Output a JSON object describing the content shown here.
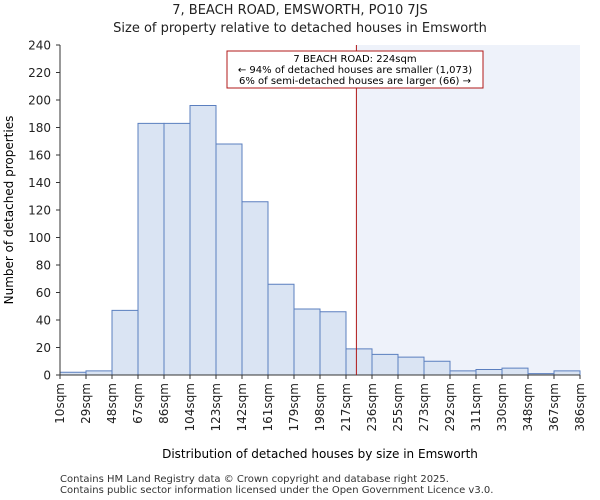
{
  "chart_data": {
    "type": "bar",
    "title": "7, BEACH ROAD, EMSWORTH, PO10 7JS",
    "subtitle": "Size of property relative to detached houses in Emsworth",
    "xlabel": "Distribution of detached houses by size in Emsworth",
    "ylabel": "Number of detached properties",
    "ylim": [
      0,
      240
    ],
    "yticks": [
      0,
      20,
      40,
      60,
      80,
      100,
      120,
      140,
      160,
      180,
      200,
      220,
      240
    ],
    "xtick_labels": [
      "10sqm",
      "29sqm",
      "48sqm",
      "67sqm",
      "86sqm",
      "104sqm",
      "123sqm",
      "142sqm",
      "161sqm",
      "179sqm",
      "198sqm",
      "217sqm",
      "236sqm",
      "255sqm",
      "273sqm",
      "292sqm",
      "311sqm",
      "330sqm",
      "348sqm",
      "367sqm",
      "386sqm"
    ],
    "values": [
      2,
      3,
      47,
      183,
      183,
      196,
      168,
      126,
      66,
      48,
      46,
      19,
      15,
      13,
      10,
      3,
      4,
      5,
      1,
      3
    ],
    "marker": {
      "value_sqm": 224,
      "bin_position": 11.4
    },
    "annotation": {
      "line1": "7 BEACH ROAD: 224sqm",
      "line2": "← 94% of detached houses are smaller (1,073)",
      "line3": "6% of semi-detached houses are larger (66) →"
    },
    "colors": {
      "bar_fill": "#dae4f3",
      "bar_stroke": "#5b7fbf",
      "marker_line": "#b01818",
      "highlight_fill": "#eef2fa",
      "axis": "#333333"
    }
  },
  "footer": {
    "line1": "Contains HM Land Registry data © Crown copyright and database right 2025.",
    "line2": "Contains public sector information licensed under the Open Government Licence v3.0."
  }
}
